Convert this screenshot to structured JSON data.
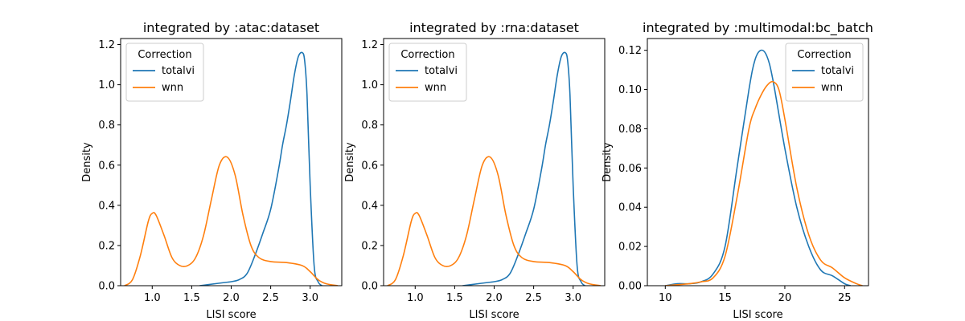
{
  "colors": {
    "totalvi": "#1f77b4",
    "wnn": "#ff7f0e"
  },
  "chart_data": [
    {
      "type": "line",
      "title": "integrated by :atac:dataset",
      "xlabel": "LISI score",
      "ylabel": "Density",
      "xlim": [
        0.6,
        3.4
      ],
      "ylim": [
        0,
        1.23
      ],
      "xticks": [
        1.0,
        1.5,
        2.0,
        2.5,
        3.0
      ],
      "xtick_labels": [
        "1.0",
        "1.5",
        "2.0",
        "2.5",
        "3.0"
      ],
      "yticks": [
        0,
        0.2,
        0.4,
        0.6,
        0.8,
        1.0,
        1.2
      ],
      "ytick_labels": [
        "0.0",
        "0.2",
        "0.4",
        "0.6",
        "0.8",
        "1.0",
        "1.2"
      ],
      "legend": {
        "title": "Correction",
        "placement": "upper-left"
      },
      "series": [
        {
          "name": "totalvi",
          "color": "#1f77b4",
          "x": [
            1.6,
            1.8,
            1.9,
            2.0,
            2.1,
            2.2,
            2.3,
            2.4,
            2.5,
            2.6,
            2.65,
            2.7,
            2.75,
            2.8,
            2.85,
            2.9,
            2.93,
            2.96,
            3.0,
            3.05,
            3.1,
            3.15
          ],
          "y": [
            0.0,
            0.01,
            0.015,
            0.02,
            0.03,
            0.06,
            0.15,
            0.26,
            0.38,
            0.58,
            0.7,
            0.8,
            0.92,
            1.05,
            1.14,
            1.16,
            1.12,
            0.95,
            0.5,
            0.1,
            0.02,
            0.0
          ]
        },
        {
          "name": "wnn",
          "color": "#ff7f0e",
          "x": [
            0.65,
            0.75,
            0.85,
            0.95,
            1.0,
            1.05,
            1.15,
            1.25,
            1.35,
            1.45,
            1.55,
            1.65,
            1.75,
            1.85,
            1.95,
            2.05,
            2.15,
            2.25,
            2.35,
            2.5,
            2.7,
            2.9,
            3.0,
            3.1,
            3.2,
            3.35
          ],
          "y": [
            0.0,
            0.03,
            0.15,
            0.32,
            0.36,
            0.35,
            0.25,
            0.14,
            0.1,
            0.1,
            0.14,
            0.25,
            0.43,
            0.6,
            0.64,
            0.55,
            0.35,
            0.2,
            0.14,
            0.12,
            0.115,
            0.1,
            0.07,
            0.03,
            0.01,
            0.0
          ]
        }
      ]
    },
    {
      "type": "line",
      "title": "integrated by :rna:dataset",
      "xlabel": "LISI score",
      "ylabel": "Density",
      "xlim": [
        0.6,
        3.4
      ],
      "ylim": [
        0,
        1.23
      ],
      "xticks": [
        1.0,
        1.5,
        2.0,
        2.5,
        3.0
      ],
      "xtick_labels": [
        "1.0",
        "1.5",
        "2.0",
        "2.5",
        "3.0"
      ],
      "yticks": [
        0,
        0.2,
        0.4,
        0.6,
        0.8,
        1.0,
        1.2
      ],
      "ytick_labels": [
        "0.0",
        "0.2",
        "0.4",
        "0.6",
        "0.8",
        "1.0",
        "1.2"
      ],
      "legend": {
        "title": "Correction",
        "placement": "upper-left"
      },
      "series": [
        {
          "name": "totalvi",
          "color": "#1f77b4",
          "x": [
            1.6,
            1.8,
            1.9,
            2.0,
            2.1,
            2.2,
            2.3,
            2.4,
            2.5,
            2.6,
            2.65,
            2.7,
            2.75,
            2.8,
            2.85,
            2.9,
            2.93,
            2.96,
            3.0,
            3.05,
            3.1,
            3.15
          ],
          "y": [
            0.0,
            0.01,
            0.015,
            0.02,
            0.03,
            0.06,
            0.15,
            0.26,
            0.38,
            0.58,
            0.7,
            0.8,
            0.92,
            1.05,
            1.14,
            1.16,
            1.12,
            0.95,
            0.5,
            0.1,
            0.02,
            0.0
          ]
        },
        {
          "name": "wnn",
          "color": "#ff7f0e",
          "x": [
            0.65,
            0.75,
            0.85,
            0.95,
            1.0,
            1.05,
            1.15,
            1.25,
            1.35,
            1.45,
            1.55,
            1.65,
            1.75,
            1.85,
            1.95,
            2.05,
            2.15,
            2.25,
            2.35,
            2.5,
            2.7,
            2.9,
            3.0,
            3.1,
            3.2,
            3.35
          ],
          "y": [
            0.0,
            0.03,
            0.15,
            0.32,
            0.36,
            0.35,
            0.25,
            0.14,
            0.1,
            0.1,
            0.14,
            0.25,
            0.43,
            0.6,
            0.64,
            0.55,
            0.35,
            0.2,
            0.14,
            0.12,
            0.115,
            0.1,
            0.07,
            0.03,
            0.01,
            0.0
          ]
        }
      ]
    },
    {
      "type": "line",
      "title": "integrated by :multimodal:bc_batch",
      "xlabel": "LISI score",
      "ylabel": "Density",
      "xlim": [
        8.5,
        27.0
      ],
      "ylim": [
        0,
        0.126
      ],
      "xticks": [
        10,
        15,
        20,
        25
      ],
      "xtick_labels": [
        "10",
        "15",
        "20",
        "25"
      ],
      "yticks": [
        0,
        0.02,
        0.04,
        0.06,
        0.08,
        0.1,
        0.12
      ],
      "ytick_labels": [
        "0.00",
        "0.02",
        "0.04",
        "0.06",
        "0.08",
        "0.10",
        "0.12"
      ],
      "legend": {
        "title": "Correction",
        "placement": "upper-right"
      },
      "series": [
        {
          "name": "totalvi",
          "color": "#1f77b4",
          "x": [
            10,
            11,
            12,
            13,
            14,
            15,
            16,
            17,
            17.5,
            18,
            18.5,
            19,
            20,
            21,
            22,
            23,
            24,
            25,
            25.5
          ],
          "y": [
            0.0,
            0.001,
            0.001,
            0.002,
            0.006,
            0.02,
            0.06,
            0.1,
            0.115,
            0.12,
            0.117,
            0.105,
            0.07,
            0.04,
            0.02,
            0.008,
            0.005,
            0.001,
            0.0
          ]
        },
        {
          "name": "wnn",
          "color": "#ff7f0e",
          "x": [
            10,
            11,
            12,
            13,
            14,
            15,
            16,
            17,
            17.5,
            18,
            18.5,
            19,
            19.5,
            20,
            21,
            22,
            23,
            24,
            25,
            26,
            26.5
          ],
          "y": [
            0.0,
            0.0005,
            0.001,
            0.002,
            0.004,
            0.015,
            0.045,
            0.08,
            0.09,
            0.097,
            0.102,
            0.104,
            0.1,
            0.085,
            0.05,
            0.026,
            0.013,
            0.009,
            0.004,
            0.001,
            0.0
          ]
        }
      ]
    }
  ]
}
